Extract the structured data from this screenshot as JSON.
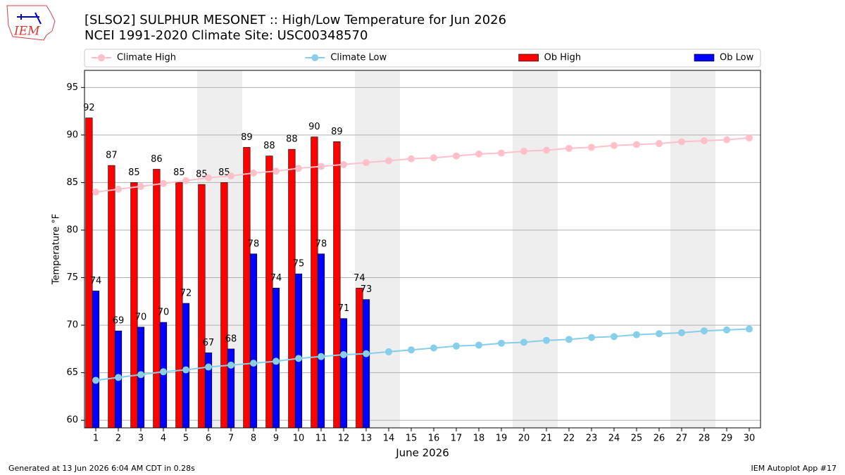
{
  "logo": "IEM",
  "footer_left": "Generated at 13 Jun 2026 6:04 AM CDT in 0.28s",
  "footer_right": "IEM Autoplot App #17",
  "chart_data": {
    "type": "bar",
    "title": "[SLSO2] SULPHUR MESONET :: High/Low Temperature for Jun 2026",
    "subtitle": "NCEI 1991-2020 Climate Site: USC00348570",
    "x_label": "June 2026",
    "y_label": "Temperature °F",
    "x": [
      1,
      2,
      3,
      4,
      5,
      6,
      7,
      8,
      9,
      10,
      11,
      12,
      13,
      14,
      15,
      16,
      17,
      18,
      19,
      20,
      21,
      22,
      23,
      24,
      25,
      26,
      27,
      28,
      29,
      30
    ],
    "xlim": [
      0.5,
      30.5
    ],
    "xticks": [
      1,
      2,
      3,
      4,
      5,
      6,
      7,
      8,
      9,
      10,
      11,
      12,
      13,
      14,
      15,
      16,
      17,
      18,
      19,
      20,
      21,
      22,
      23,
      24,
      25,
      26,
      27,
      28,
      29,
      30
    ],
    "ylim": [
      59.2,
      96.8
    ],
    "yticks": [
      60,
      65,
      70,
      75,
      80,
      85,
      90,
      95
    ],
    "grid": true,
    "shaded_spans": [
      [
        5.5,
        7.5
      ],
      [
        12.5,
        14.5
      ],
      [
        19.5,
        21.5
      ],
      [
        26.5,
        28.5
      ]
    ],
    "shade_color": "#eeeeee",
    "legend": "top",
    "series": [
      {
        "name": "Climate High",
        "type": "line",
        "color": "#ffc0cb",
        "values": [
          84.0,
          84.3,
          84.6,
          84.9,
          85.2,
          85.5,
          85.7,
          86.0,
          86.2,
          86.5,
          86.7,
          86.9,
          87.1,
          87.3,
          87.5,
          87.6,
          87.8,
          88.0,
          88.1,
          88.3,
          88.4,
          88.6,
          88.7,
          88.9,
          89.0,
          89.1,
          89.3,
          89.4,
          89.5,
          89.7
        ]
      },
      {
        "name": "Climate Low",
        "type": "line",
        "color": "#87ceeb",
        "values": [
          64.2,
          64.5,
          64.8,
          65.1,
          65.3,
          65.6,
          65.8,
          66.0,
          66.2,
          66.5,
          66.7,
          66.9,
          67.0,
          67.2,
          67.4,
          67.6,
          67.8,
          67.9,
          68.1,
          68.2,
          68.4,
          68.5,
          68.7,
          68.8,
          69.0,
          69.1,
          69.2,
          69.4,
          69.5,
          69.6
        ]
      },
      {
        "name": "Ob High",
        "type": "bar",
        "color": "#ff0000",
        "values": [
          91.8,
          86.8,
          85.0,
          86.4,
          85.0,
          84.8,
          85.0,
          88.7,
          87.8,
          88.5,
          89.8,
          89.3,
          73.9,
          null,
          null,
          null,
          null,
          null,
          null,
          null,
          null,
          null,
          null,
          null,
          null,
          null,
          null,
          null,
          null,
          null
        ],
        "value_labels": [
          "92",
          "87",
          "85",
          "86",
          "85",
          "85",
          "85",
          "89",
          "88",
          "88",
          "90",
          "89",
          "74",
          null,
          null,
          null,
          null,
          null,
          null,
          null,
          null,
          null,
          null,
          null,
          null,
          null,
          null,
          null,
          null,
          null
        ]
      },
      {
        "name": "Ob Low",
        "type": "bar",
        "color": "#0000ff",
        "values": [
          73.6,
          69.4,
          69.8,
          70.3,
          72.3,
          67.1,
          67.5,
          77.5,
          73.9,
          75.4,
          77.5,
          70.7,
          72.7,
          null,
          null,
          null,
          null,
          null,
          null,
          null,
          null,
          null,
          null,
          null,
          null,
          null,
          null,
          null,
          null,
          null
        ],
        "value_labels": [
          "74",
          "69",
          "70",
          "70",
          "72",
          "67",
          "68",
          "78",
          "74",
          "75",
          "78",
          "71",
          "73",
          null,
          null,
          null,
          null,
          null,
          null,
          null,
          null,
          null,
          null,
          null,
          null,
          null,
          null,
          null,
          null,
          null
        ]
      }
    ]
  }
}
